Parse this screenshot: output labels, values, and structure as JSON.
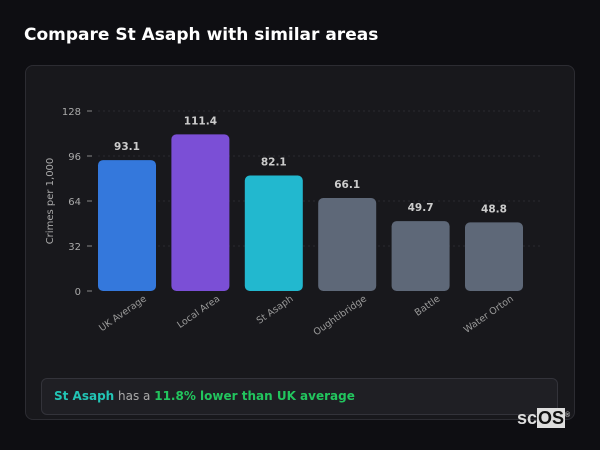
{
  "title": "Compare St Asaph with similar areas",
  "chart_data": {
    "type": "bar",
    "categories": [
      "UK Average",
      "Local Area",
      "St Asaph",
      "Oughtibridge",
      "Battle",
      "Water Orton"
    ],
    "values": [
      93.1,
      111.4,
      82.1,
      66.1,
      49.7,
      48.8
    ],
    "data_labels": [
      "93.1",
      "111.4",
      "82.1",
      "66.1",
      "49.7",
      "48.8"
    ],
    "colors": [
      "#3478dc",
      "#7b4fd6",
      "#22b8cf",
      "#5e6878",
      "#5e6878",
      "#5e6878"
    ],
    "ylabel": "Crimes per 1,000",
    "xlabel": "",
    "ylim": [
      0,
      128
    ],
    "yticks": [
      0,
      32,
      64,
      96,
      128
    ],
    "grid": true
  },
  "summary": {
    "area": "St Asaph",
    "middle": " has a ",
    "comparison": "11.8% lower than UK average"
  },
  "logo": {
    "text_sc": "sc",
    "text_os": "OS",
    "mark": "®"
  }
}
